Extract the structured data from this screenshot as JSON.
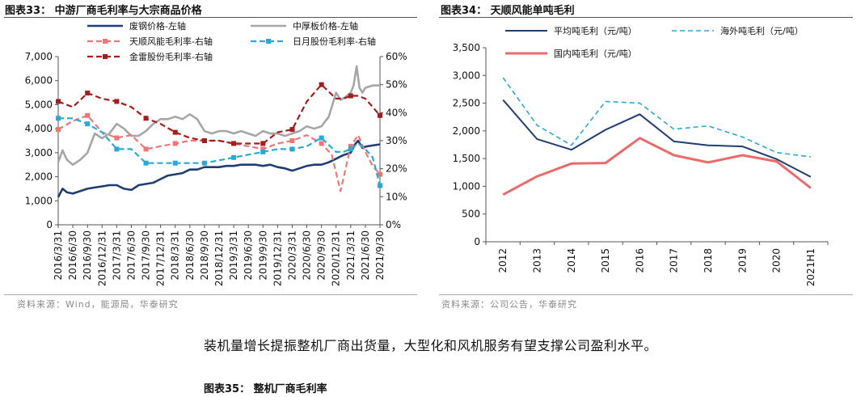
{
  "left_figure": {
    "title": "图表33：  中游厂商毛利率与大宗商品价格",
    "source": "资料来源：Wind，能源局，华泰研究"
  },
  "right_figure": {
    "title": "图表34：  天顺风能单吨毛利",
    "source": "资料来源：公司公告，华泰研究"
  },
  "body_text": "装机量增长提振整机厂商出货量，大型化和风机服务有望支撑公司盈利水平。",
  "next_figure_title": "图表35：  整机厂商毛利率",
  "colors": {
    "navy": "#1f3d73",
    "gray": "#a6a6a6",
    "salmon": "#f07575",
    "cyan": "#2aa8d8",
    "darkred": "#a51c1c",
    "pinkred": "#ec6a6a"
  },
  "chart_data": [
    {
      "type": "line",
      "title": "中游厂商毛利率与大宗商品价格",
      "x_tick_labels": [
        "2016/3/31",
        "2016/6/30",
        "2016/9/30",
        "2016/12/31",
        "2017/3/31",
        "2017/6/30",
        "2017/9/30",
        "2017/12/31",
        "2018/3/31",
        "2018/6/30",
        "2018/9/30",
        "2018/12/31",
        "2019/3/31",
        "2019/6/30",
        "2019/9/30",
        "2019/12/31",
        "2020/3/31",
        "2020/6/30",
        "2020/9/30",
        "2020/12/31",
        "2021/3/31",
        "2021/6/30",
        "2021/9/30"
      ],
      "y_left": {
        "ylim": [
          0,
          7000
        ],
        "ticks": [
          0,
          1000,
          2000,
          3000,
          4000,
          5000,
          6000,
          7000
        ],
        "tick_labels": [
          "0",
          "1,000",
          "2,000",
          "3,000",
          "4,000",
          "5,000",
          "6,000",
          "7,000"
        ]
      },
      "y_right": {
        "ylim": [
          0,
          0.6
        ],
        "ticks": [
          0,
          0.1,
          0.2,
          0.3,
          0.4,
          0.5,
          0.6
        ],
        "tick_labels": [
          "0%",
          "10%",
          "20%",
          "30%",
          "40%",
          "50%",
          "60%"
        ]
      },
      "legend": [
        "废钢价格-左轴",
        "中厚板价格-左轴",
        "天顺风能毛利率-右轴",
        "日月股份毛利率-右轴",
        "金雷股份毛利率-右轴"
      ],
      "series": [
        {
          "name": "废钢价格-左轴",
          "axis": "left",
          "style": "solid-thick",
          "color": "navy",
          "x": [
            0,
            0.3,
            0.6,
            1,
            1.5,
            2,
            2.5,
            3,
            3.5,
            4,
            4.5,
            5,
            5.5,
            6,
            6.5,
            7,
            7.5,
            8,
            8.5,
            9,
            9.5,
            10,
            10.5,
            11,
            11.5,
            12,
            12.5,
            13,
            13.5,
            14,
            14.5,
            15,
            15.5,
            16,
            16.5,
            17,
            17.5,
            18,
            18.5,
            19,
            19.5,
            20,
            20.3,
            20.5,
            20.8,
            21,
            21.5,
            22
          ],
          "y": [
            1150,
            1500,
            1350,
            1300,
            1400,
            1500,
            1550,
            1600,
            1650,
            1650,
            1500,
            1450,
            1650,
            1700,
            1750,
            1900,
            2050,
            2100,
            2150,
            2300,
            2300,
            2400,
            2400,
            2400,
            2450,
            2450,
            2500,
            2500,
            2500,
            2450,
            2500,
            2400,
            2350,
            2250,
            2350,
            2450,
            2500,
            2500,
            2600,
            2750,
            2900,
            3000,
            3350,
            3500,
            3200,
            3250,
            3300,
            3350
          ]
        },
        {
          "name": "中厚板价格-左轴",
          "axis": "left",
          "style": "solid-thick",
          "color": "gray",
          "x": [
            0,
            0.3,
            0.6,
            1,
            1.5,
            2,
            2.5,
            3,
            3.5,
            4,
            4.5,
            5,
            5.5,
            6,
            6.5,
            7,
            7.5,
            8,
            8.5,
            9,
            9.5,
            10,
            10.5,
            11,
            11.5,
            12,
            12.5,
            13,
            13.5,
            14,
            14.5,
            15,
            15.5,
            16,
            16.5,
            17,
            17.5,
            18,
            18.5,
            19,
            19.3,
            19.6,
            20,
            20.2,
            20.4,
            20.6,
            20.8,
            21,
            21.5,
            22
          ],
          "y": [
            2600,
            3100,
            2700,
            2500,
            2700,
            3000,
            3800,
            3600,
            3800,
            4200,
            4000,
            3700,
            3700,
            3900,
            4200,
            4400,
            4400,
            4500,
            4400,
            4600,
            4400,
            3900,
            3800,
            3900,
            3900,
            3800,
            3900,
            3800,
            3700,
            3900,
            3800,
            3800,
            3700,
            3800,
            3900,
            4100,
            4000,
            4100,
            4500,
            5500,
            5200,
            5300,
            5500,
            5800,
            6600,
            5700,
            5500,
            5700,
            5800,
            5800
          ]
        },
        {
          "name": "天顺风能毛利率-右轴",
          "axis": "right",
          "style": "dashed-markers",
          "color": "salmon",
          "x": [
            0,
            1,
            2,
            3,
            4,
            5,
            6,
            7,
            8,
            9,
            10,
            11,
            12,
            13,
            14,
            15,
            16,
            17,
            18,
            18.7,
            19.3,
            20,
            20.5,
            21,
            21.5,
            22
          ],
          "y": [
            0.34,
            0.37,
            0.39,
            0.33,
            0.31,
            0.32,
            0.27,
            0.28,
            0.29,
            0.3,
            0.3,
            0.3,
            0.29,
            0.28,
            0.27,
            0.29,
            0.3,
            0.32,
            0.29,
            0.25,
            0.12,
            0.28,
            0.32,
            0.26,
            0.21,
            0.18
          ]
        },
        {
          "name": "日月股份毛利率-右轴",
          "axis": "right",
          "style": "dashed-markers",
          "color": "cyan",
          "x": [
            0,
            1,
            2,
            3,
            4,
            5,
            6,
            7,
            8,
            9,
            10,
            11,
            12,
            13,
            14,
            15,
            16,
            17,
            18,
            19,
            19.5,
            20,
            20.5,
            21,
            21.5,
            22
          ],
          "y": [
            0.38,
            0.38,
            0.36,
            0.33,
            0.27,
            0.27,
            0.22,
            0.22,
            0.22,
            0.22,
            0.22,
            0.23,
            0.24,
            0.25,
            0.26,
            0.27,
            0.27,
            0.28,
            0.31,
            0.26,
            0.26,
            0.27,
            0.29,
            0.27,
            0.24,
            0.14
          ]
        },
        {
          "name": "金雷股份毛利率-右轴",
          "axis": "right",
          "style": "dashed-markers",
          "color": "darkred",
          "x": [
            0,
            1,
            2,
            3,
            4,
            5,
            6,
            7,
            8,
            9,
            10,
            11,
            12,
            13,
            14,
            15,
            16,
            17,
            18,
            19,
            19.5,
            20,
            20.5,
            21,
            21.5,
            22
          ],
          "y": [
            0.44,
            0.42,
            0.47,
            0.45,
            0.44,
            0.42,
            0.38,
            0.36,
            0.33,
            0.31,
            0.3,
            0.3,
            0.29,
            0.29,
            0.29,
            0.33,
            0.34,
            0.44,
            0.5,
            0.45,
            0.45,
            0.46,
            0.46,
            0.45,
            0.42,
            0.39
          ]
        }
      ]
    },
    {
      "type": "line",
      "title": "天顺风能单吨毛利",
      "categories": [
        "2012",
        "2013",
        "2014",
        "2015",
        "2016",
        "2017",
        "2018",
        "2019",
        "2020",
        "2021H1"
      ],
      "ylim": [
        0,
        3500
      ],
      "y_ticks": [
        0,
        500,
        1000,
        1500,
        2000,
        2500,
        3000,
        3500
      ],
      "y_tick_labels": [
        "0",
        "500",
        "1,000",
        "1,500",
        "2,000",
        "2,500",
        "3,000",
        "3,500"
      ],
      "legend": [
        "平均吨毛利（元/吨）",
        "海外吨毛利（元/吨）",
        "国内吨毛利（元/吨）"
      ],
      "series": [
        {
          "name": "平均吨毛利（元/吨）",
          "style": "solid",
          "color": "navy",
          "values": [
            2560,
            1850,
            1660,
            2020,
            2300,
            1810,
            1740,
            1720,
            1490,
            1170
          ]
        },
        {
          "name": "海外吨毛利（元/吨）",
          "style": "dashed",
          "color": "cyan",
          "values": [
            2960,
            2100,
            1740,
            2530,
            2500,
            2030,
            2090,
            1890,
            1610,
            1530
          ]
        },
        {
          "name": "国内吨毛利（元/吨）",
          "style": "solid-thick",
          "color": "pinkred",
          "values": [
            850,
            1180,
            1410,
            1420,
            1870,
            1560,
            1430,
            1560,
            1450,
            970
          ]
        }
      ]
    }
  ]
}
